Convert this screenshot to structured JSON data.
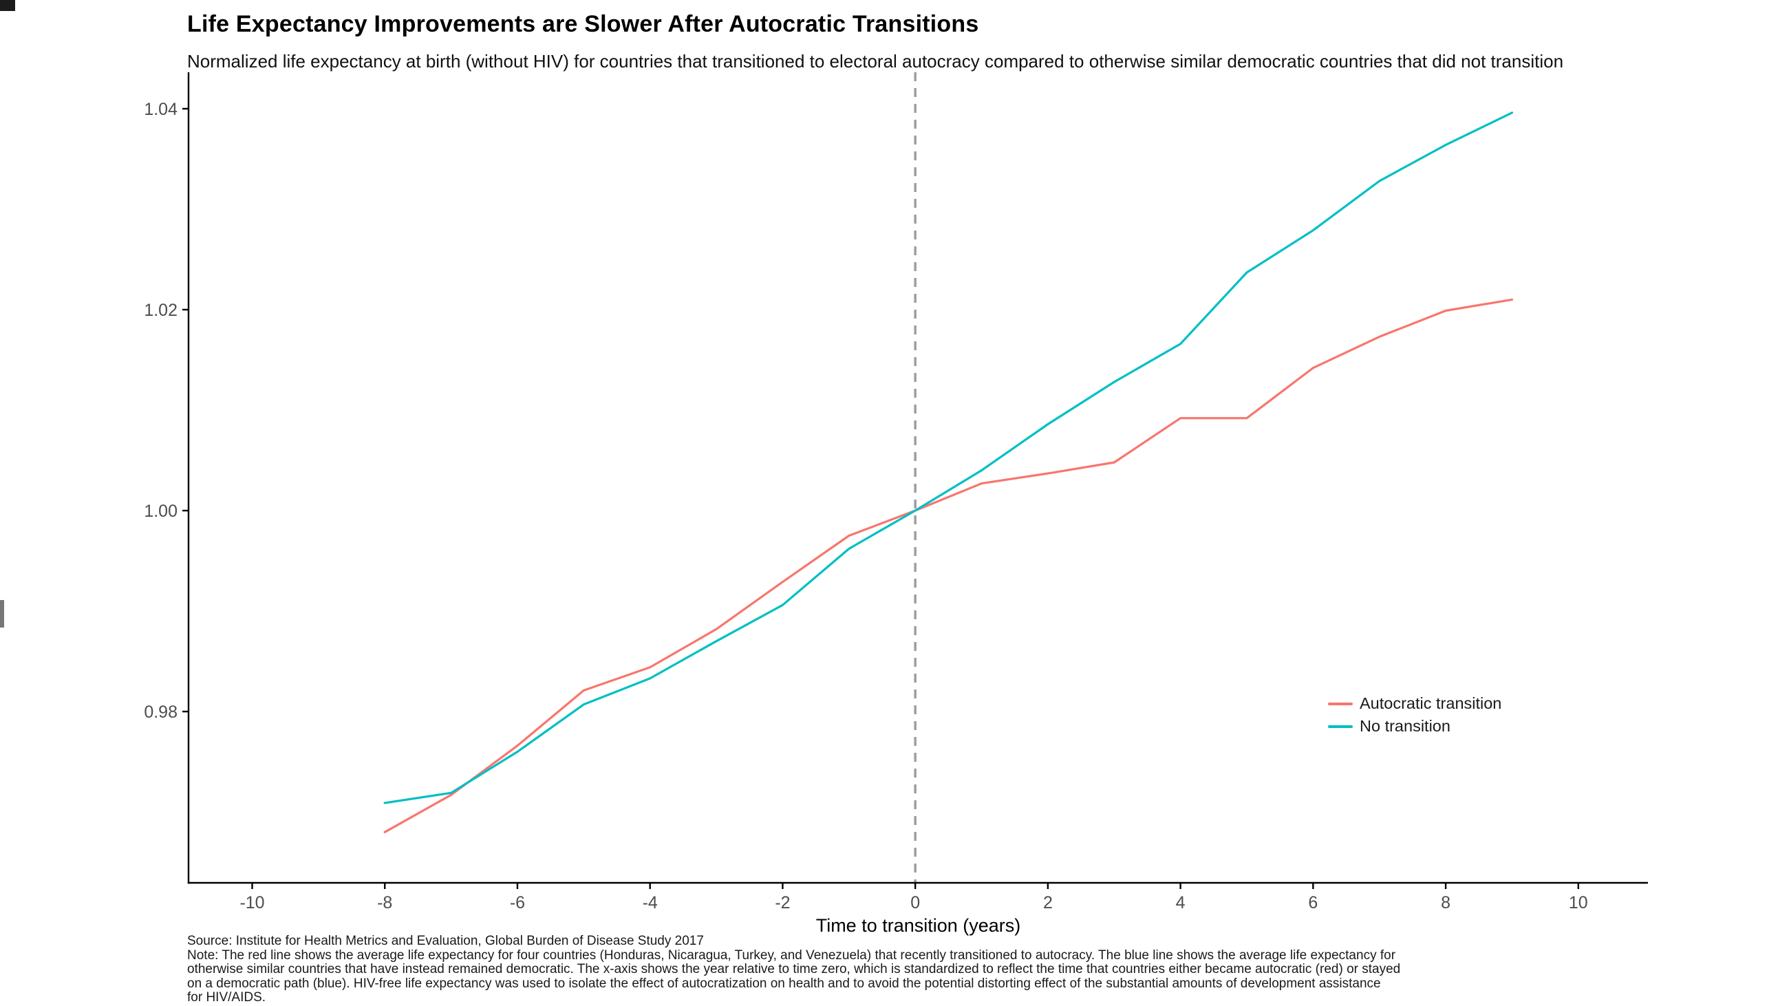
{
  "header": {
    "title": "Life Expectancy Improvements are Slower After Autocratic Transitions",
    "subtitle": "Normalized life expectancy at birth (without HIV) for countries that transitioned to electoral autocracy compared to otherwise similar democratic countries that did not transition"
  },
  "chart_data": {
    "type": "line",
    "title": "Life Expectancy Improvements are Slower After Autocratic Transitions",
    "xlabel": "Time to transition (years)",
    "ylabel": "",
    "x": [
      -8,
      -7,
      -6,
      -5,
      -4,
      -3,
      -2,
      -1,
      0,
      1,
      2,
      3,
      4,
      5,
      6,
      7,
      8,
      9
    ],
    "series": [
      {
        "name": "Autocratic transition",
        "color": "#F8766D",
        "values": [
          0.968,
          0.9717,
          0.9766,
          0.9821,
          0.9844,
          0.9882,
          0.9929,
          0.9975,
          1.0,
          1.0027,
          1.0037,
          1.0048,
          1.0092,
          1.0092,
          1.0142,
          1.0173,
          1.0199,
          1.021
        ]
      },
      {
        "name": "No transition",
        "color": "#00BFC4",
        "values": [
          0.9709,
          0.9719,
          0.976,
          0.9807,
          0.9833,
          0.987,
          0.9906,
          0.9962,
          1.0,
          1.004,
          1.0086,
          1.0128,
          1.0166,
          1.0237,
          1.0279,
          1.0328,
          1.0364,
          1.0396
        ]
      }
    ],
    "x_axis": {
      "min": -10.96,
      "max": 11.05,
      "ticks": [
        -10,
        -8,
        -6,
        -4,
        -2,
        0,
        2,
        4,
        6,
        8,
        10
      ],
      "tick_labels": [
        "-10",
        "-8",
        "-6",
        "-4",
        "-2",
        "0",
        "2",
        "4",
        "6",
        "8",
        "10"
      ]
    },
    "y_axis": {
      "min": 0.96295,
      "max": 1.04363,
      "ticks": [
        0.98,
        1.0,
        1.02,
        1.04
      ],
      "tick_labels": [
        "0.98",
        "1.00",
        "1.02",
        "1.04"
      ]
    },
    "reference_line": {
      "x": 0,
      "style": "dashed",
      "color": "#9e9e9e"
    },
    "legend_position": "inside-right",
    "grid": false,
    "axis_color": "#000000",
    "tick_label_color": "#4d4d4d"
  },
  "legend": {
    "items": [
      {
        "label": "Autocratic transition",
        "color": "#F8766D"
      },
      {
        "label": "No transition",
        "color": "#00BFC4"
      }
    ]
  },
  "x_axis_title": "Time to transition (years)",
  "caption": {
    "lines": [
      "Source: Institute for Health Metrics and Evaluation, Global Burden of Disease Study 2017",
      "Note: The red line shows the average life expectancy for four countries (Honduras, Nicaragua, Turkey, and Venezuela) that recently transitioned to autocracy. The blue line shows the average life expectancy for",
      "otherwise similar countries that have instead remained democratic. The x-axis shows the year relative to time zero, which is standardized to reflect the time that countries either became autocratic (red) or stayed",
      "on a democratic path (blue). HIV-free life expectancy was used to isolate the effect of autocratization on health and to avoid the potential distorting effect of the substantial amounts of development assistance",
      "for HIV/AIDS."
    ]
  }
}
